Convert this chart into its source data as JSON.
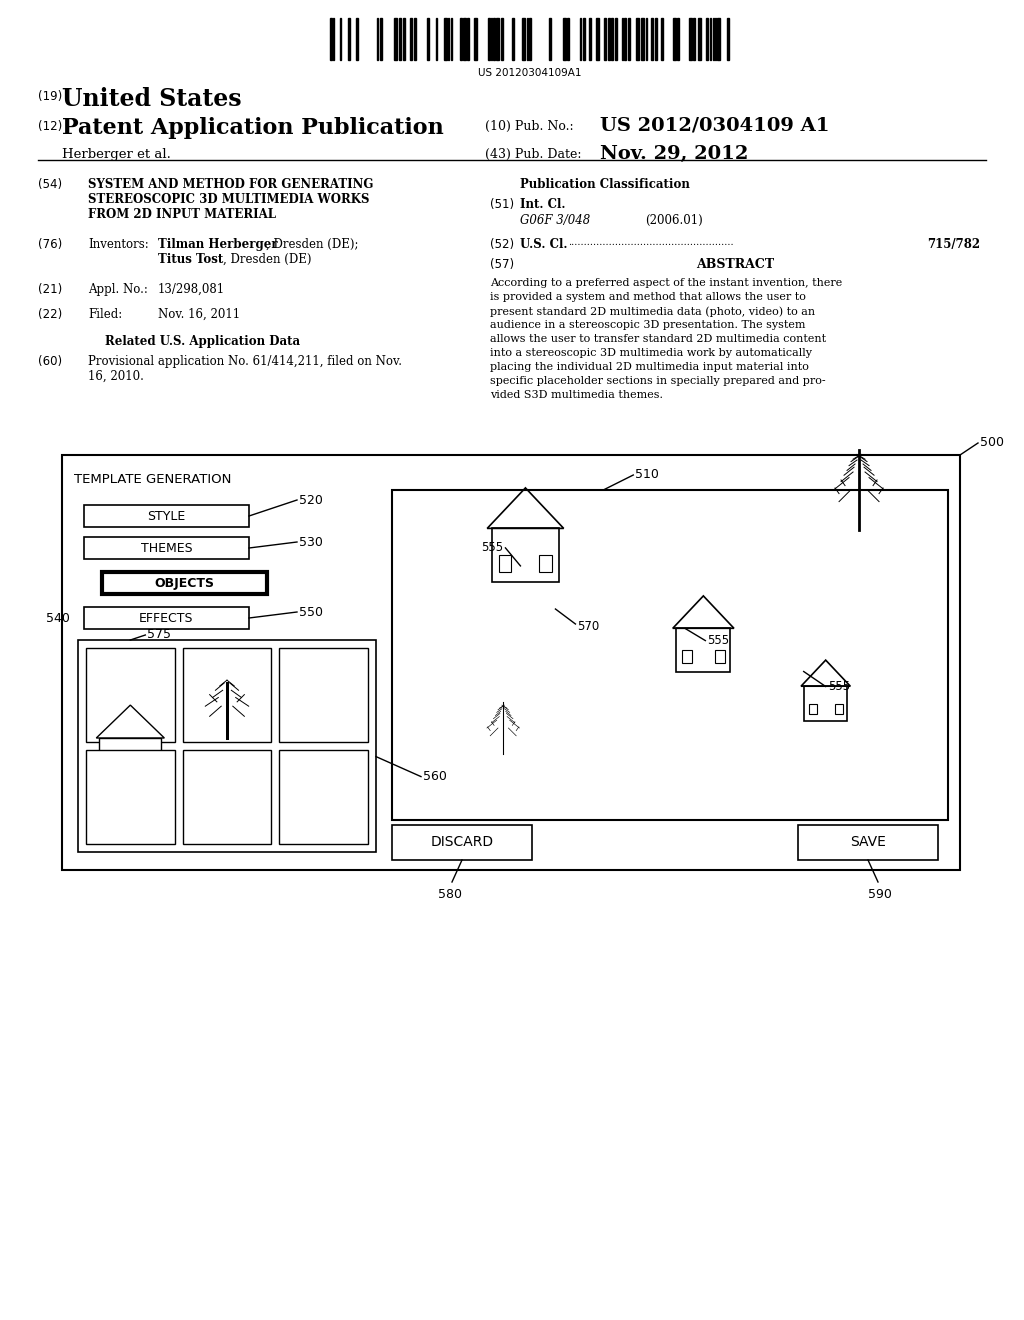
{
  "bg_color": "#ffffff",
  "barcode_text": "US 20120304109A1",
  "country": "United States",
  "label_19": "(19)",
  "label_12": "(12)",
  "pub_type": "Patent Application Publication",
  "inventors_label": "Herberger et al.",
  "pub_no_label": "(10) Pub. No.:",
  "pub_no_val": "US 2012/0304109 A1",
  "pub_date_label": "(43) Pub. Date:",
  "pub_date_val": "Nov. 29, 2012",
  "label_54": "(54)",
  "title_54_1": "SYSTEM AND METHOD FOR GENERATING",
  "title_54_2": "STEREOSCOPIC 3D MULTIMEDIA WORKS",
  "title_54_3": "FROM 2D INPUT MATERIAL",
  "label_76": "(76)",
  "inventors_title": "Inventors:",
  "inventors_val_1": "Tilman Herberger, Dresden (DE);",
  "inventors_val_2": "Titus Tost, Dresden (DE)",
  "label_21": "(21)",
  "appl_title": "Appl. No.:",
  "appl_val": "13/298,081",
  "label_22": "(22)",
  "filed_title": "Filed:",
  "filed_val": "Nov. 16, 2011",
  "related_title": "Related U.S. Application Data",
  "label_60": "(60)",
  "related_val_1": "Provisional application No. 61/414,211, filed on Nov.",
  "related_val_2": "16, 2010.",
  "pub_class_title": "Publication Classification",
  "label_51": "(51)",
  "intcl_title": "Int. Cl.",
  "intcl_val": "G06F 3/048",
  "intcl_year": "(2006.01)",
  "label_52": "(52)",
  "uscl_title": "U.S. Cl.",
  "uscl_dots": ".....................................................",
  "uscl_val": "715/782",
  "label_57": "(57)",
  "abstract_title": "ABSTRACT",
  "abstract_lines": [
    "According to a preferred aspect of the instant invention, there",
    "is provided a system and method that allows the user to",
    "present standard 2D multimedia data (photo, video) to an",
    "audience in a stereoscopic 3D presentation. The system",
    "allows the user to transfer standard 2D multimedia content",
    "into a stereoscopic 3D multimedia work by automatically",
    "placing the individual 2D multimedia input material into",
    "specific placeholder sections in specially prepared and pro-",
    "vided S3D multimedia themes."
  ],
  "diagram_label_500": "500",
  "diagram_label_510": "510",
  "diagram_label_520": "520",
  "diagram_label_530": "530",
  "diagram_label_540": "540",
  "diagram_label_550": "550",
  "diagram_label_555a": "555",
  "diagram_label_555b": "555",
  "diagram_label_555c": "555",
  "diagram_label_560": "560",
  "diagram_label_570": "570",
  "diagram_label_575": "575",
  "diagram_label_580": "580",
  "diagram_label_590": "590",
  "template_gen_label": "TEMPLATE GENERATION",
  "style_label": "STYLE",
  "themes_label": "THEMES",
  "objects_label": "OBJECTS",
  "effects_label": "EFFECTS",
  "discard_label": "DISCARD",
  "save_label": "SAVE"
}
